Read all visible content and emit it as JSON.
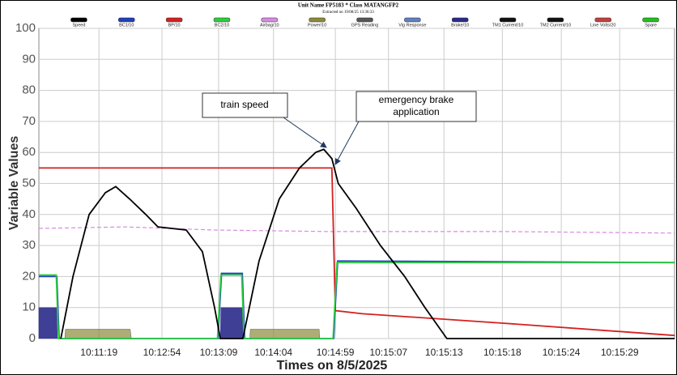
{
  "chart_data": {
    "type": "line",
    "title": "Unit Name FP5183  * Class  MATANGFP2",
    "subtitle": "Extracted on 19/08/25 13:36:33",
    "ylabel": "Variable Values",
    "xlabel": "Times on 8/5/2025",
    "ylim": [
      0,
      100
    ],
    "yticks": [
      0,
      10,
      20,
      30,
      40,
      50,
      60,
      70,
      80,
      90,
      100
    ],
    "xlim": [
      0,
      110
    ],
    "xticks": [
      {
        "value": 10.4,
        "label": "10:11:19"
      },
      {
        "value": 21.3,
        "label": "10:12:54"
      },
      {
        "value": 31.1,
        "label": "10:13:09"
      },
      {
        "value": 40.6,
        "label": "10:14:04"
      },
      {
        "value": 51.3,
        "label": "10:14:59"
      },
      {
        "value": 60.5,
        "label": "10:15:07"
      },
      {
        "value": 70.1,
        "label": "10:15:13"
      },
      {
        "value": 80.2,
        "label": "10:15:18"
      },
      {
        "value": 90.4,
        "label": "10:15:24"
      },
      {
        "value": 100.5,
        "label": "10:15:29"
      }
    ],
    "grid": true,
    "series": [
      {
        "name": "Speed",
        "color": "#000000",
        "x": [
          3.8,
          5.9,
          8.7,
          11.5,
          13.3,
          15.7,
          18.5,
          20.6,
          25.5,
          28.3,
          30.4,
          31.4,
          35.3,
          38.1,
          41.6,
          45.1,
          47.9,
          49.3,
          50.7,
          51.8,
          54.9,
          59.1,
          63.3,
          66.8,
          70.6,
          110
        ],
        "values": [
          0,
          20,
          40,
          47,
          49,
          45,
          40,
          36,
          35,
          28,
          10,
          0,
          0,
          25,
          45,
          55,
          60,
          61,
          58,
          50,
          42,
          30,
          20,
          10,
          0,
          0
        ]
      },
      {
        "name": "BC1/10",
        "color": "#1f3fbf",
        "x": [
          0,
          3.1,
          3.5,
          17.8,
          31.0,
          31.6,
          35.2,
          35.6,
          51.0,
          51.7,
          110
        ],
        "values": [
          20,
          20,
          0,
          0,
          0,
          21,
          21,
          0,
          0,
          25,
          24.5
        ]
      },
      {
        "name": "BP/10",
        "color": "#d42020",
        "x": [
          0,
          50.7,
          51.3,
          56,
          80,
          110
        ],
        "values": [
          55,
          55,
          9,
          8,
          5,
          1
        ]
      },
      {
        "name": "BC2/10",
        "color": "#2ecc40",
        "x": [
          0,
          3.0,
          3.4,
          17.8,
          30.9,
          31.5,
          35.1,
          35.5,
          50.9,
          51.6,
          110
        ],
        "values": [
          20.5,
          20.5,
          0,
          0,
          0,
          20.5,
          20.5,
          0,
          0,
          24.5,
          24.5
        ]
      },
      {
        "name": "Airbag/10",
        "color": "#d78be0",
        "x": [
          0,
          15,
          30,
          50,
          80,
          110
        ],
        "values": [
          35.5,
          36,
          35,
          34.5,
          34.5,
          34
        ]
      },
      {
        "name": "Power/10",
        "color": "#8a8a3a",
        "x": [
          4.5,
          4.6,
          15.8,
          16.0,
          36.5,
          36.6,
          48.5,
          48.6
        ],
        "values": [
          0,
          3,
          3,
          0,
          0,
          3,
          3,
          0
        ]
      },
      {
        "name": "GPS Reading",
        "color": "#555555"
      },
      {
        "name": "Vig Response",
        "color": "#6080c0"
      },
      {
        "name": "Brake/10",
        "color": "#2a2a8a",
        "x": [
          0,
          3.1,
          3.2,
          31.4,
          31.5,
          35.3,
          35.4
        ],
        "values": [
          10,
          10,
          0,
          0,
          10,
          10,
          0
        ]
      },
      {
        "name": "TM1 Current/10",
        "color": "#111111"
      },
      {
        "name": "TM2 Current/10",
        "color": "#111111"
      },
      {
        "name": "Line Volts/20",
        "color": "#c04040"
      },
      {
        "name": "Spare",
        "color": "#20c020"
      }
    ],
    "annotations": [
      "train speed",
      "emergency brake application"
    ]
  }
}
